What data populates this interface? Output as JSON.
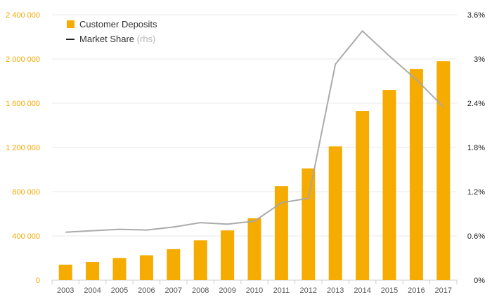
{
  "chart_data": {
    "type": "bar",
    "categories": [
      "2003",
      "2004",
      "2005",
      "2006",
      "2007",
      "2008",
      "2009",
      "2010",
      "2011",
      "2012",
      "2013",
      "2014",
      "2015",
      "2016",
      "2017"
    ],
    "series": [
      {
        "name": "Customer Deposits",
        "type": "bar",
        "axis": "left",
        "color": "#f5ab00",
        "values": [
          140000,
          165000,
          200000,
          225000,
          280000,
          360000,
          450000,
          560000,
          850000,
          1010000,
          1210000,
          1530000,
          1720000,
          1910000,
          1980000
        ]
      },
      {
        "name": "Market Share",
        "name_suffix": "(rhs)",
        "type": "line",
        "axis": "right",
        "color": "#a6a6a6",
        "values": [
          0.65,
          0.67,
          0.69,
          0.68,
          0.72,
          0.78,
          0.76,
          0.8,
          1.05,
          1.11,
          2.93,
          3.38,
          3.04,
          2.72,
          2.35
        ]
      }
    ],
    "left_axis": {
      "ylim": [
        0,
        2400000
      ],
      "ticks": [
        0,
        400000,
        800000,
        1200000,
        1600000,
        2000000,
        2400000
      ],
      "tick_labels": [
        "0",
        "400 000",
        "800 000",
        "1 200 000",
        "1 600 000",
        "2 000 000",
        "2 400 000"
      ],
      "color": "#f5a800"
    },
    "right_axis": {
      "ylim": [
        0,
        3.6
      ],
      "ticks": [
        0,
        0.6,
        1.2,
        1.8,
        2.4,
        3.0,
        3.6
      ],
      "tick_labels": [
        "0%",
        "0.6%",
        "1.2%",
        "1.8%",
        "2.4%",
        "3%",
        "3.6%"
      ],
      "color": "#222222"
    },
    "grid": true,
    "legend": {
      "placement": "top-left",
      "entries": [
        {
          "label": "Customer Deposits",
          "suffix": ""
        },
        {
          "label": "Market Share",
          "suffix": "(rhs)"
        }
      ]
    }
  }
}
